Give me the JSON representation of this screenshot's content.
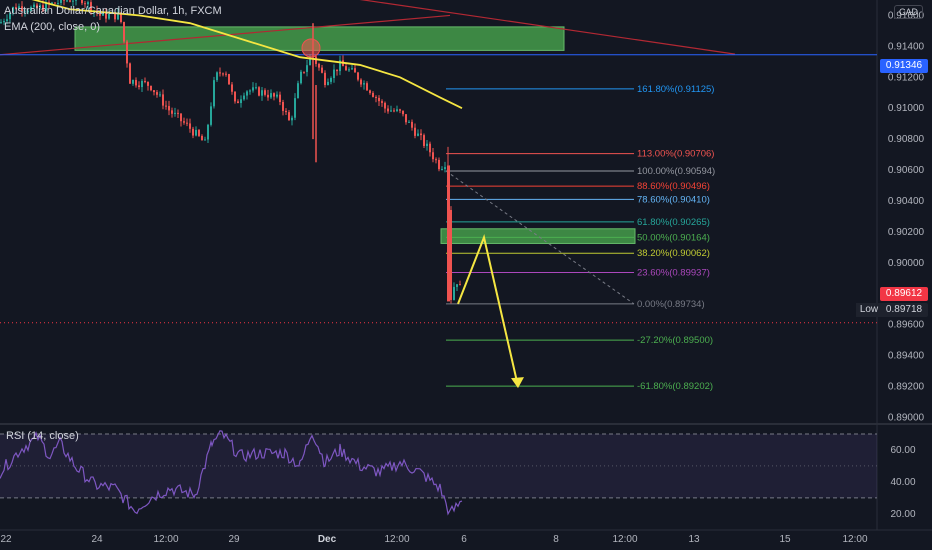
{
  "header": {
    "symbol": "Australian Dollar/Canadian Dollar, 1h, FXCM",
    "indicator": "EMA (200, close, 0)"
  },
  "rsi_panel": {
    "title": "RSI (14, close)"
  },
  "price_tags": {
    "currency": "CAD",
    "alert_price": "0.91346",
    "last_price": "0.89612",
    "low_label": "Low",
    "low_price": "0.89718"
  },
  "colors": {
    "background": "#131722",
    "up_candle": "#26a69a",
    "down_candle": "#ef5350",
    "ema": "#f5e642",
    "trendline": "#b22833",
    "alert_line": "#2962ff",
    "zone_fill": "#4caf50",
    "arrow": "#f5e642",
    "rsi_line": "#7e57c2"
  },
  "chart_data": [
    {
      "type": "candlestick",
      "title": "Australian Dollar/Canadian Dollar, 1h, FXCM",
      "x_tick_labels": [
        "22",
        "24",
        "12:00",
        "29",
        "Dec",
        "12:00",
        "6",
        "8",
        "12:00",
        "13",
        "15",
        "12:00"
      ],
      "y_tick_labels": [
        "0.91600",
        "0.91400",
        "0.91200",
        "0.91000",
        "0.90800",
        "0.90600",
        "0.90400",
        "0.90200",
        "0.90000",
        "0.89800",
        "0.89600",
        "0.89400",
        "0.89200",
        "0.89000"
      ],
      "ylim": [
        0.8897,
        0.917
      ],
      "grid": false,
      "series": [
        {
          "name": "EMA (200, close, 0)",
          "type": "line",
          "points": [
            [
              0,
              0.9176
            ],
            [
              70,
              0.9164
            ],
            [
              140,
              0.916
            ],
            [
              190,
              0.9155
            ],
            [
              240,
              0.9145
            ],
            [
              300,
              0.9133
            ],
            [
              360,
              0.9128
            ],
            [
              400,
              0.912
            ],
            [
              440,
              0.9107
            ],
            [
              462,
              0.91
            ]
          ]
        }
      ],
      "price_path": [
        [
          0,
          0.9155
        ],
        [
          15,
          0.9166
        ],
        [
          35,
          0.9164
        ],
        [
          60,
          0.9169
        ],
        [
          80,
          0.9172
        ],
        [
          100,
          0.916
        ],
        [
          120,
          0.916
        ],
        [
          130,
          0.9118
        ],
        [
          150,
          0.9115
        ],
        [
          170,
          0.9098
        ],
        [
          190,
          0.9087
        ],
        [
          205,
          0.9077
        ],
        [
          215,
          0.912
        ],
        [
          225,
          0.9126
        ],
        [
          235,
          0.9102
        ],
        [
          245,
          0.9112
        ],
        [
          265,
          0.911
        ],
        [
          280,
          0.9105
        ],
        [
          290,
          0.909
        ],
        [
          300,
          0.912
        ],
        [
          312,
          0.9135
        ],
        [
          325,
          0.9118
        ],
        [
          340,
          0.9128
        ],
        [
          355,
          0.9122
        ],
        [
          370,
          0.9112
        ],
        [
          385,
          0.91
        ],
        [
          400,
          0.9097
        ],
        [
          415,
          0.9085
        ],
        [
          430,
          0.9072
        ],
        [
          440,
          0.9062
        ],
        [
          447,
          0.9066
        ],
        [
          450,
          0.8975
        ],
        [
          456,
          0.899
        ],
        [
          462,
          0.898
        ]
      ],
      "zones": [
        {
          "price_low": 0.91374,
          "price_high": 0.91526
        },
        {
          "price_low": 0.90125,
          "price_high": 0.9022
        }
      ],
      "fibonacci": [
        {
          "label": "161.80%(0.91125)",
          "price": 0.91125,
          "color": "#2196f3"
        },
        {
          "label": "113.00%(0.90706)",
          "price": 0.90706,
          "color": "#ef5350"
        },
        {
          "label": "100.00%(0.90594)",
          "price": 0.90594,
          "color": "#9598a1"
        },
        {
          "label": "88.60%(0.90496)",
          "price": 0.90496,
          "color": "#f44336"
        },
        {
          "label": "78.60%(0.90410)",
          "price": 0.9041,
          "color": "#64b5f6"
        },
        {
          "label": "61.80%(0.90265)",
          "price": 0.90265,
          "color": "#26a69a"
        },
        {
          "label": "50.00%(0.90164)",
          "price": 0.90164,
          "color": "#4caf50"
        },
        {
          "label": "38.20%(0.90062)",
          "price": 0.90062,
          "color": "#c0ca33"
        },
        {
          "label": "23.60%(0.89937)",
          "price": 0.89937,
          "color": "#ab47bc"
        },
        {
          "label": "0.00%(0.89734)",
          "price": 0.89734,
          "color": "#787b86"
        },
        {
          "label": "-27.20%(0.89500)",
          "price": 0.895,
          "color": "#4caf50"
        },
        {
          "label": "-61.80%(0.89202)",
          "price": 0.89202,
          "color": "#4caf50"
        }
      ],
      "trendline": [
        [
          0,
          0.91346
        ],
        [
          450,
          0.916
        ]
      ],
      "trendline_upper": [
        [
          300,
          0.9176
        ],
        [
          735,
          0.9135
        ]
      ],
      "projected_path": [
        [
          458,
          0.89734
        ],
        [
          484,
          0.90164
        ],
        [
          518,
          0.89202
        ]
      ],
      "alert_level": 0.91346,
      "last_price": 0.89612,
      "session_low": 0.89718
    },
    {
      "type": "line",
      "title": "RSI (14, close)",
      "y_tick_labels": [
        "60.00",
        "40.00",
        "20.00"
      ],
      "ylim": [
        13,
        75
      ],
      "band": [
        30,
        70
      ],
      "series": [
        {
          "name": "RSI (14, close)",
          "points": [
            [
              0,
              46
            ],
            [
              20,
              60
            ],
            [
              38,
              68
            ],
            [
              50,
              56
            ],
            [
              60,
              64
            ],
            [
              75,
              50
            ],
            [
              95,
              38
            ],
            [
              115,
              36
            ],
            [
              135,
              22
            ],
            [
              150,
              30
            ],
            [
              170,
              36
            ],
            [
              195,
              32
            ],
            [
              212,
              64
            ],
            [
              222,
              70
            ],
            [
              240,
              56
            ],
            [
              262,
              58
            ],
            [
              285,
              58
            ],
            [
              300,
              50
            ],
            [
              312,
              72
            ],
            [
              325,
              52
            ],
            [
              340,
              60
            ],
            [
              360,
              50
            ],
            [
              380,
              46
            ],
            [
              400,
              52
            ],
            [
              420,
              46
            ],
            [
              440,
              36
            ],
            [
              450,
              20
            ],
            [
              462,
              28
            ]
          ]
        }
      ]
    }
  ]
}
